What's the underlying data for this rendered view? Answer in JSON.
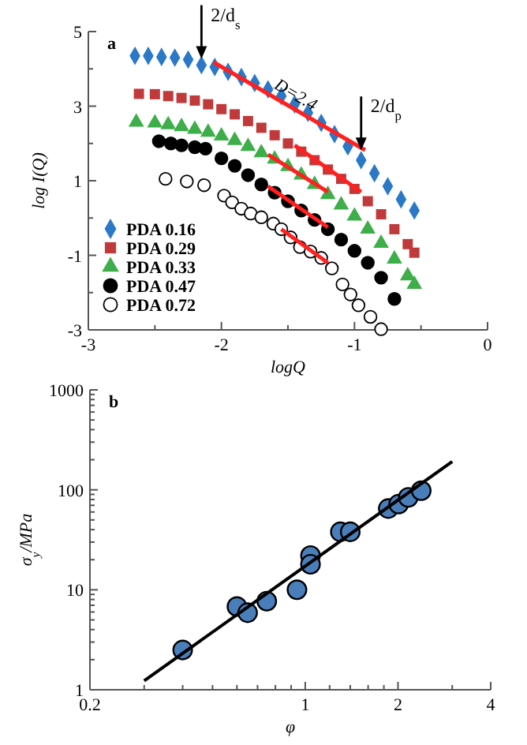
{
  "chart_data": [
    {
      "type": "scatter",
      "xlabel": "logQ",
      "ylabel": "log I(Q)",
      "xlim": [
        -3,
        0
      ],
      "ylim": [
        -3,
        5
      ],
      "xticks": [
        -3,
        {
          "value": -2.5,
          "label": null
        },
        -2,
        {
          "value": -1.5,
          "label": null
        },
        -1,
        {
          "value": -0.5,
          "label": null
        },
        0
      ],
      "yticks": [
        -3,
        {
          "value": -2,
          "label": null
        },
        -1,
        {
          "value": 0,
          "label": null
        },
        1,
        {
          "value": 2,
          "label": null
        },
        3,
        {
          "value": 4,
          "label": null
        },
        5
      ],
      "legend": "bottom left",
      "annotations": [
        "a",
        {
          "text": "2/d$_{s}$",
          "x": -2.15,
          "y": 4.1
        },
        {
          "text": "2/d$_{p}$",
          "x": -0.95,
          "y": 1.65
        }
      ],
      "series": [
        {
          "name": "PDA 0.16",
          "color": "#2a78c6",
          "marker": "diamond",
          "x": [
            -2.65,
            -2.55,
            -2.45,
            -2.35,
            -2.25,
            -2.15,
            -2.05,
            -1.95,
            -1.85,
            -1.75,
            -1.65,
            -1.55,
            -1.45,
            -1.35,
            -1.25,
            -1.15,
            -1.05,
            -0.95,
            -0.85,
            -0.75,
            -0.65,
            -0.55
          ],
          "values": [
            4.35,
            4.35,
            4.32,
            4.3,
            4.25,
            4.1,
            4.05,
            3.92,
            3.78,
            3.62,
            3.45,
            3.27,
            3.05,
            2.82,
            2.55,
            2.25,
            1.92,
            1.55,
            1.2,
            0.85,
            0.5,
            0.2
          ]
        },
        {
          "name": "PDA 0.29",
          "color": "#c0393b",
          "marker": "square",
          "x": [
            -2.62,
            -2.5,
            -2.4,
            -2.3,
            -2.2,
            -2.1,
            -2.0,
            -1.9,
            -1.8,
            -1.7,
            -1.6,
            -1.5,
            -1.4,
            -1.3,
            -1.2,
            -1.1,
            -1.0,
            -0.9,
            -0.8,
            -0.7,
            -0.6,
            -0.55
          ],
          "values": [
            3.33,
            3.32,
            3.27,
            3.22,
            3.15,
            3.05,
            2.92,
            2.78,
            2.6,
            2.42,
            2.22,
            2.0,
            1.78,
            1.55,
            1.3,
            1.05,
            0.78,
            0.45,
            0.1,
            -0.3,
            -0.7,
            -0.93
          ]
        },
        {
          "name": "PDA 0.33",
          "color": "#3dae49",
          "marker": "triangle",
          "x": [
            -2.64,
            -2.5,
            -2.4,
            -2.3,
            -2.2,
            -2.1,
            -2.0,
            -1.9,
            -1.8,
            -1.7,
            -1.6,
            -1.5,
            -1.4,
            -1.3,
            -1.2,
            -1.1,
            -1.0,
            -0.9,
            -0.8,
            -0.7,
            -0.6,
            -0.55
          ],
          "values": [
            2.57,
            2.55,
            2.5,
            2.45,
            2.38,
            2.3,
            2.2,
            2.08,
            1.92,
            1.75,
            1.58,
            1.38,
            1.15,
            0.9,
            0.63,
            0.35,
            0.05,
            -0.3,
            -0.68,
            -1.1,
            -1.55,
            -1.78
          ]
        },
        {
          "name": "PDA 0.47",
          "color": "#000000",
          "marker": "circle",
          "x": [
            -2.47,
            -2.38,
            -2.3,
            -2.2,
            -2.12,
            -2.0,
            -1.9,
            -1.8,
            -1.7,
            -1.6,
            -1.5,
            -1.4,
            -1.3,
            -1.2,
            -1.1,
            -1.0,
            -0.9,
            -0.8,
            -0.7
          ],
          "values": [
            2.06,
            2.0,
            1.95,
            1.9,
            1.86,
            1.6,
            1.4,
            1.15,
            0.9,
            0.68,
            0.45,
            0.2,
            -0.05,
            -0.3,
            -0.58,
            -0.88,
            -1.2,
            -1.6,
            -2.17
          ]
        },
        {
          "name": "PDA 0.72",
          "color": "#ffffff",
          "marker": "circle",
          "x": [
            -2.42,
            -2.26,
            -2.13,
            -1.98,
            -1.92,
            -1.85,
            -1.78,
            -1.7,
            -1.61,
            -1.55,
            -1.48,
            -1.41,
            -1.33,
            -1.25,
            -1.17,
            -1.09,
            -1.03,
            -0.97,
            -0.88,
            -0.8
          ],
          "values": [
            1.05,
            0.98,
            0.88,
            0.6,
            0.42,
            0.25,
            0.12,
            0.02,
            -0.15,
            -0.3,
            -0.52,
            -0.78,
            -0.9,
            -1.07,
            -1.35,
            -1.78,
            -2.05,
            -2.34,
            -2.65,
            -2.98
          ]
        },
        {
          "type": "line",
          "name": "D=2.4",
          "color": "#ff2020",
          "x": [
            -2.06,
            -0.92
          ],
          "values": [
            4.18,
            1.82
          ]
        },
        {
          "type": "line",
          "color": "#ff2020",
          "x": [
            -1.45,
            -0.95
          ],
          "values": [
            1.95,
            0.7
          ]
        },
        {
          "type": "line",
          "color": "#ff2020",
          "x": [
            -1.65,
            -1.2
          ],
          "values": [
            1.7,
            0.7
          ]
        },
        {
          "type": "line",
          "color": "#ff2020",
          "x": [
            -1.65,
            -1.2
          ],
          "values": [
            0.85,
            -0.25
          ]
        },
        {
          "type": "line",
          "color": "#ff2020",
          "x": [
            -1.55,
            -1.2
          ],
          "values": [
            -0.3,
            -1.2
          ]
        }
      ]
    },
    {
      "type": "scatter",
      "xlabel": "φ",
      "ylabel": "σ$_{y}$/MPa",
      "log": "xy",
      "xlim": [
        0.2,
        4
      ],
      "ylim": [
        1,
        1000
      ],
      "xticks": [
        0.2,
        {
          "value": 0.3,
          "label": null
        },
        {
          "value": 0.4,
          "label": null
        },
        {
          "value": 0.5,
          "label": null
        },
        {
          "value": 0.6,
          "label": null
        },
        {
          "value": 0.7,
          "label": null
        },
        {
          "value": 0.8,
          "label": null
        },
        {
          "value": 0.9,
          "label": null
        },
        1,
        {
          "value": 1.2,
          "label": null
        },
        {
          "value": 1.4,
          "label": null
        },
        {
          "value": 1.6,
          "label": null
        },
        {
          "value": 1.8,
          "label": null
        },
        2,
        {
          "value": 3,
          "label": null
        },
        4
      ],
      "yticks": [
        1,
        {
          "value": 2,
          "label": null
        },
        {
          "value": 3,
          "label": null
        },
        {
          "value": 4,
          "label": null
        },
        {
          "value": 5,
          "label": null
        },
        {
          "value": 6,
          "label": null
        },
        {
          "value": 7,
          "label": null
        },
        {
          "value": 8,
          "label": null
        },
        {
          "value": 9,
          "label": null
        },
        10,
        {
          "value": 20,
          "label": null
        },
        {
          "value": 30,
          "label": null
        },
        {
          "value": 40,
          "label": null
        },
        {
          "value": 50,
          "label": null
        },
        {
          "value": 60,
          "label": null
        },
        {
          "value": 70,
          "label": null
        },
        {
          "value": 80,
          "label": null
        },
        {
          "value": 90,
          "label": null
        },
        100,
        {
          "value": 200,
          "label": null
        },
        {
          "value": 300,
          "label": null
        },
        {
          "value": 400,
          "label": null
        },
        {
          "value": 500,
          "label": null
        },
        {
          "value": 600,
          "label": null
        },
        {
          "value": 700,
          "label": null
        },
        {
          "value": 800,
          "label": null
        },
        {
          "value": 900,
          "label": null
        },
        1000
      ],
      "annotations": [
        "b"
      ],
      "series": [
        {
          "color": "#4a7ebb",
          "marker": "circle",
          "x": [
            0.4,
            0.6,
            0.65,
            0.75,
            0.94,
            1.04,
            1.04,
            1.3,
            1.4,
            1.86,
            2.01,
            2.16,
            2.38
          ],
          "values": [
            2.5,
            6.8,
            5.9,
            7.7,
            10,
            22,
            18,
            38,
            38,
            65,
            72,
            84,
            98
          ]
        },
        {
          "type": "line",
          "color": "#000000",
          "x": [
            0.3,
            3.0
          ],
          "values": [
            1.23,
            192
          ]
        }
      ]
    }
  ]
}
